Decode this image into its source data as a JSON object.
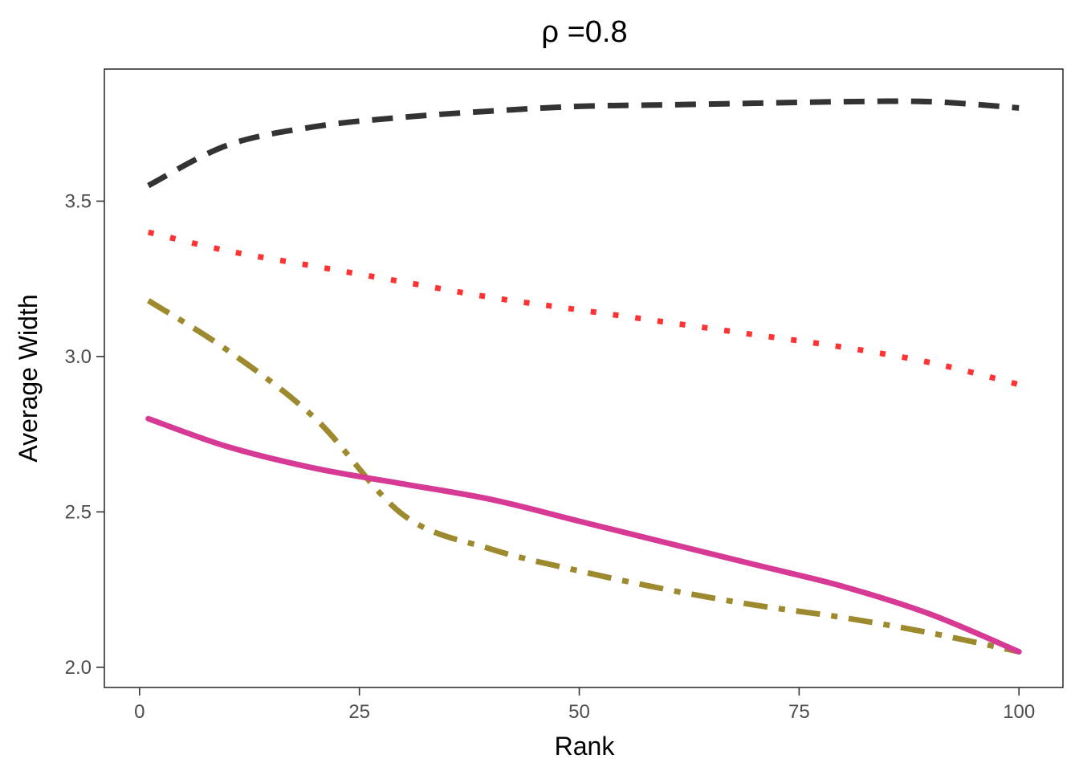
{
  "chart_data": {
    "type": "line",
    "title": "ρ =0.8",
    "xlabel": "Rank",
    "ylabel": "Average Width",
    "xlim": [
      -4,
      105
    ],
    "ylim": [
      1.935,
      3.925
    ],
    "xticks": [
      0,
      25,
      50,
      75,
      100
    ],
    "yticks": [
      2.0,
      2.5,
      3.0,
      3.5
    ],
    "xtick_labels": [
      "0",
      "25",
      "50",
      "75",
      "100"
    ],
    "ytick_labels": [
      "2.0",
      "2.5",
      "3.0",
      "3.5"
    ],
    "grid": false,
    "legend": "none",
    "x": [
      1,
      10,
      20,
      30,
      40,
      50,
      60,
      70,
      80,
      90,
      100
    ],
    "series": [
      {
        "name": "dashed-black",
        "color": "#333333",
        "dash": "long-dash",
        "values": [
          3.55,
          3.68,
          3.74,
          3.77,
          3.79,
          3.805,
          3.81,
          3.815,
          3.82,
          3.82,
          3.8
        ]
      },
      {
        "name": "dotted-red",
        "color": "#ff3333",
        "dash": "dotted",
        "values": [
          3.4,
          3.34,
          3.29,
          3.24,
          3.19,
          3.15,
          3.11,
          3.07,
          3.03,
          2.98,
          2.91
        ]
      },
      {
        "name": "dashdot-olive",
        "color": "#9e8a2e",
        "dash": "dash-dot",
        "values": [
          3.18,
          3.02,
          2.8,
          2.49,
          2.38,
          2.31,
          2.25,
          2.2,
          2.16,
          2.11,
          2.05
        ]
      },
      {
        "name": "solid-magenta",
        "color": "#d63a94",
        "dash": "solid",
        "values": [
          2.8,
          2.71,
          2.64,
          2.59,
          2.54,
          2.47,
          2.4,
          2.33,
          2.26,
          2.17,
          2.05
        ]
      }
    ]
  }
}
